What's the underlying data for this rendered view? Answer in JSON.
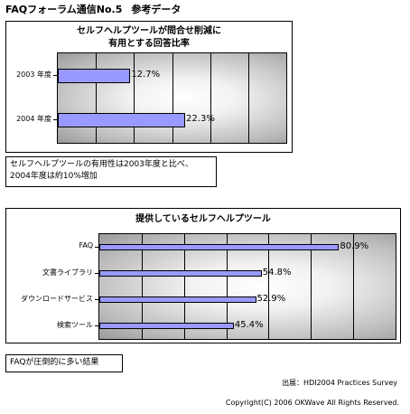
{
  "header": {
    "title": "FAQフォーラム通信No.5",
    "subtitle": "参考データ"
  },
  "chart_data": [
    {
      "type": "bar",
      "orientation": "horizontal",
      "title_lines": [
        "セルフヘルプツールが問合せ削減に",
        "有用とする回答比率"
      ],
      "categories": [
        "2003 年度",
        "2004 年度"
      ],
      "values": [
        12.7,
        22.3
      ],
      "value_labels": [
        "12.7%",
        "22.3%"
      ],
      "xlim": [
        0,
        40
      ],
      "grid": true,
      "bar_color": "#9999ff"
    },
    {
      "type": "bar",
      "orientation": "horizontal",
      "title": "提供しているセルフヘルプツール",
      "categories": [
        "FAQ",
        "文書ライブラリ",
        "ダウンロードサービス",
        "検索ツール"
      ],
      "values": [
        80.9,
        54.8,
        52.9,
        45.4
      ],
      "value_labels": [
        "80.9%",
        "54.8%",
        "52.9%",
        "45.4%"
      ],
      "xlim": [
        0,
        100
      ],
      "grid": true,
      "bar_color": "#9999ff"
    }
  ],
  "notes": {
    "note1_lines": [
      "セルフヘルプツールの有用性は2003年度と比べ、",
      "2004年度は約10%増加"
    ],
    "note2": "FAQが圧倒的に多い結果"
  },
  "footer": {
    "source": "出展：HDI2004 Practices Survey",
    "copyright": "Copyright(C) 2006 OKWave All Rights Reserved."
  }
}
